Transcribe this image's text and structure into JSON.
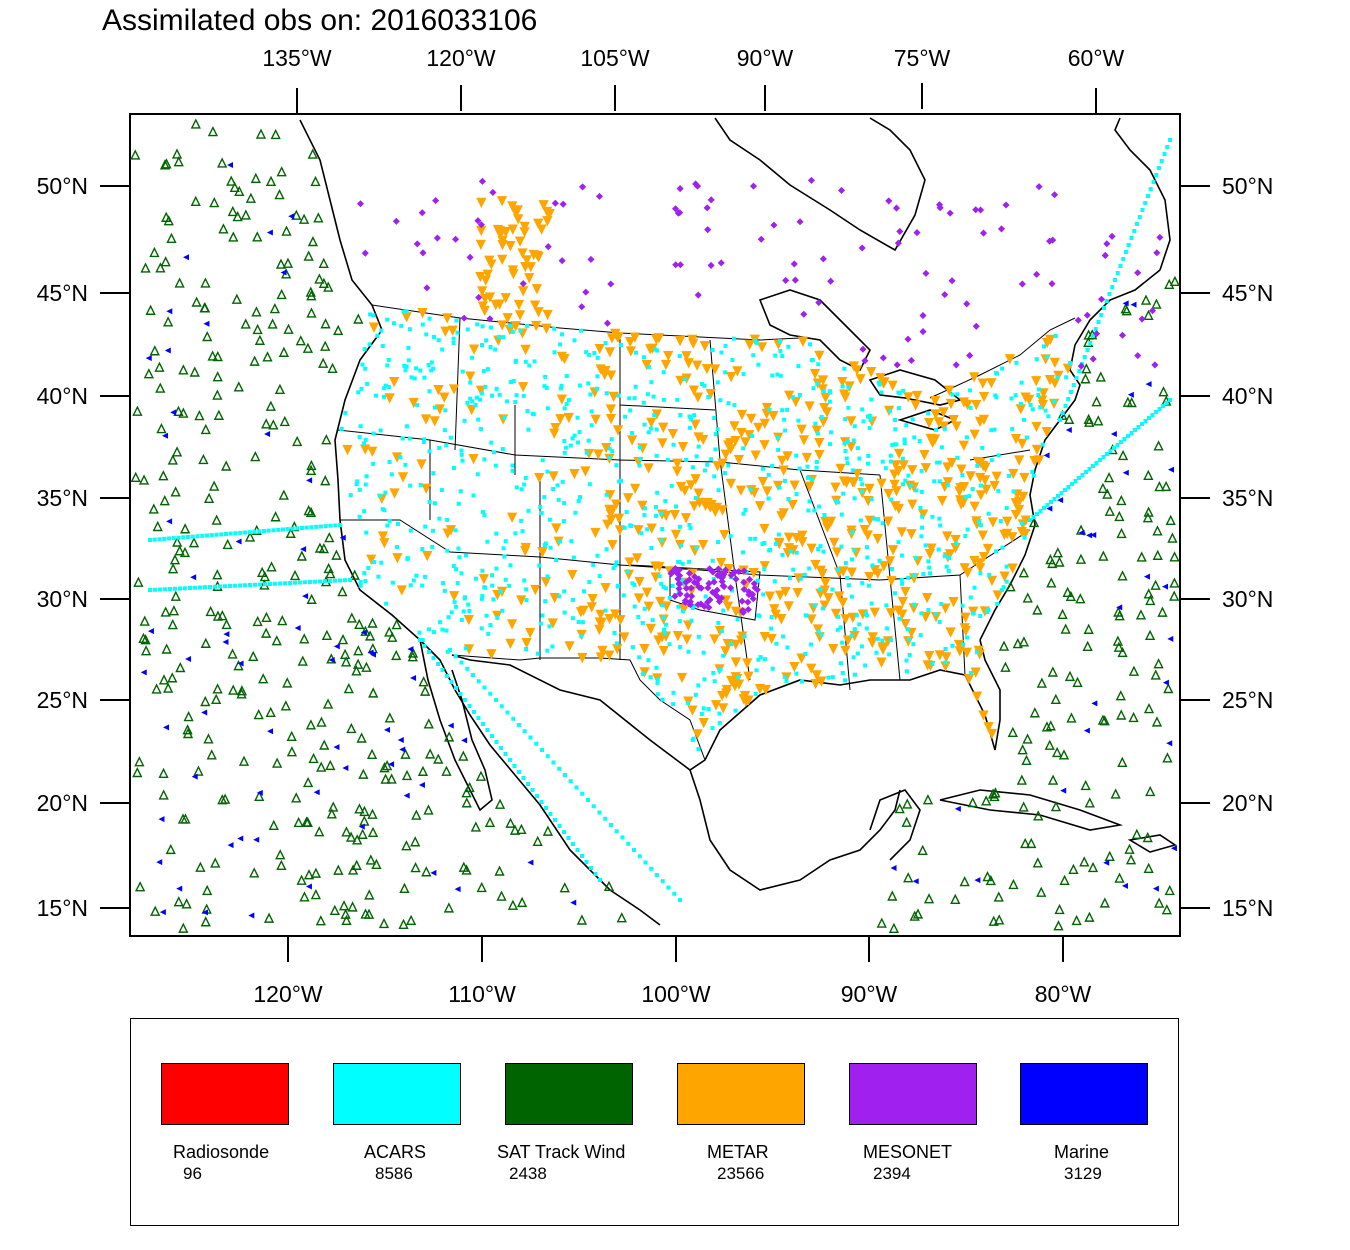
{
  "title": "Assimilated obs on: 2016033106",
  "axes": {
    "top_ticks": [
      "135°W",
      "120°W",
      "105°W",
      "90°W",
      "75°W",
      "60°W"
    ],
    "bottom_ticks": [
      "120°W",
      "110°W",
      "100°W",
      "90°W",
      "80°W"
    ],
    "left_ticks": [
      "50°N",
      "45°N",
      "40°N",
      "35°N",
      "30°N",
      "25°N",
      "20°N",
      "15°N"
    ],
    "right_ticks": [
      "50°N",
      "45°N",
      "40°N",
      "35°N",
      "30°N",
      "25°N",
      "20°N",
      "15°N"
    ]
  },
  "legend": [
    {
      "name": "Radiosonde",
      "count": "96",
      "color": "#ff0000"
    },
    {
      "name": "ACARS",
      "count": "8586",
      "color": "#00ffff"
    },
    {
      "name": "SAT Track Wind",
      "count": "2438",
      "color": "#006400"
    },
    {
      "name": "METAR",
      "count": "23566",
      "color": "#ffa500"
    },
    {
      "name": "MESONET",
      "count": "2394",
      "color": "#a020f0"
    },
    {
      "name": "Marine",
      "count": "3129",
      "color": "#0000ff"
    }
  ],
  "colors": {
    "acars": "#00ffff",
    "sat": "#006400",
    "metar": "#ffa500",
    "mesonet": "#a020f0",
    "marine": "#0000ff",
    "coast": "#000000"
  }
}
